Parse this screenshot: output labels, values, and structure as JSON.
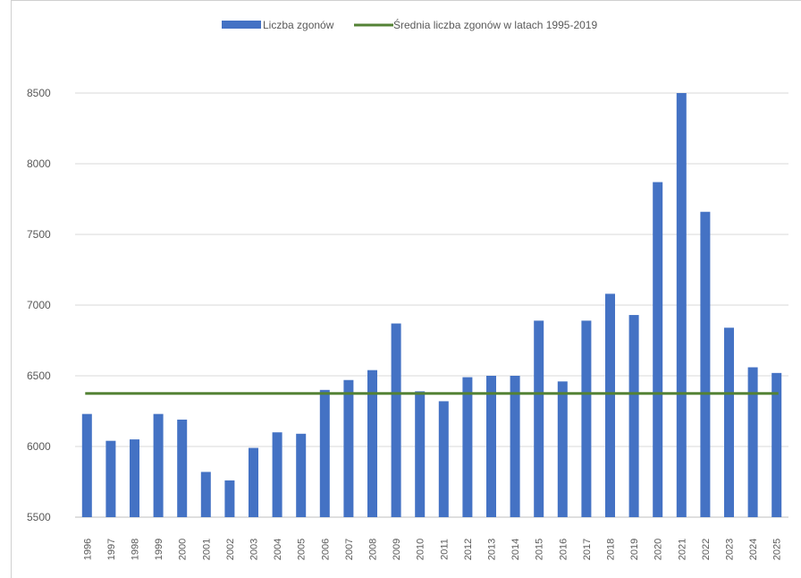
{
  "chart_data": {
    "type": "bar",
    "legend": {
      "placement": "top",
      "bar_label": "Liczba zgonów",
      "line_label": "Średnia liczba zgonów w latach 1995-2019"
    },
    "categories": [
      "1996",
      "1997",
      "1998",
      "1999",
      "2000",
      "2001",
      "2002",
      "2003",
      "2004",
      "2005",
      "2006",
      "2007",
      "2008",
      "2009",
      "2010",
      "2011",
      "2012",
      "2013",
      "2014",
      "2015",
      "2016",
      "2017",
      "2018",
      "2019",
      "2020",
      "2021",
      "2022",
      "2023",
      "2024",
      "2025"
    ],
    "values": [
      6230,
      6040,
      6050,
      6230,
      6190,
      5820,
      5760,
      5990,
      6100,
      6090,
      6400,
      6470,
      6540,
      6870,
      6390,
      6320,
      6490,
      6500,
      6500,
      6890,
      6460,
      6890,
      7080,
      6930,
      7870,
      8500,
      7660,
      6840,
      6560,
      6520
    ],
    "average": 6375,
    "ylim": [
      5500,
      9000
    ],
    "yticks": [
      5500,
      6000,
      6500,
      7000,
      7500,
      8000,
      8500
    ],
    "grid": true,
    "colors": {
      "bar": "#4472C4",
      "line": "#548235",
      "grid": "#d9d9d9",
      "text": "#595959"
    }
  }
}
